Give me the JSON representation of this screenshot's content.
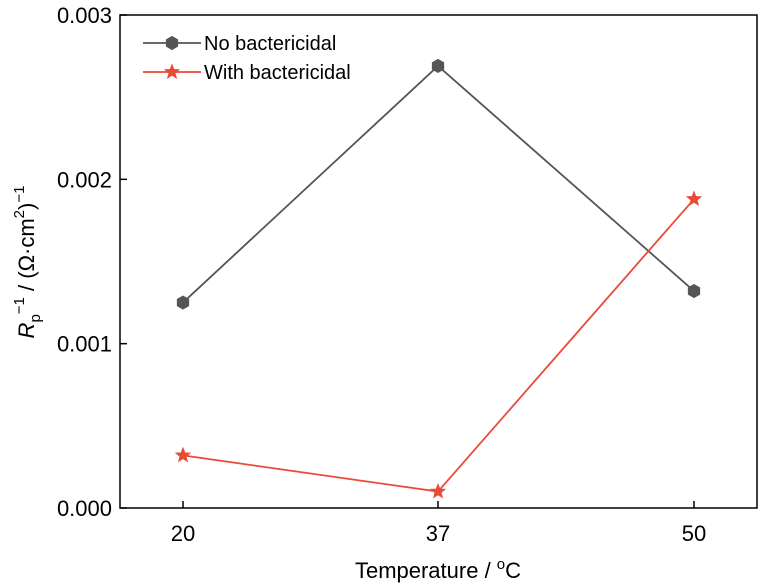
{
  "chart_data": {
    "type": "line",
    "categories": [
      "20",
      "37",
      "50"
    ],
    "series": [
      {
        "name": "No bactericidal",
        "values": [
          0.00125,
          0.00269,
          0.00132
        ],
        "color": "#555555",
        "marker": "hexagon"
      },
      {
        "name": "With bactericidal",
        "values": [
          0.00032,
          0.0001,
          0.00188
        ],
        "color": "#ea4a35",
        "marker": "star"
      }
    ],
    "xlabel": "Temperature / °C",
    "xlabel_parts": {
      "main": "Temperature / ",
      "sup": "o",
      "end": "C"
    },
    "ylabel": "R_p^-1 / (Ω·cm^2)^-1",
    "ylabel_parts": {
      "r": "R",
      "sub": "p",
      "sup1": "−1",
      "mid": " / (Ω·cm",
      "sup2": "2",
      "close": ")",
      "sup3": "−1"
    },
    "ylim": [
      0,
      0.003
    ],
    "yticks": [
      "0.000",
      "0.001",
      "0.002",
      "0.003"
    ],
    "grid": false,
    "legend_position": "top-left"
  }
}
